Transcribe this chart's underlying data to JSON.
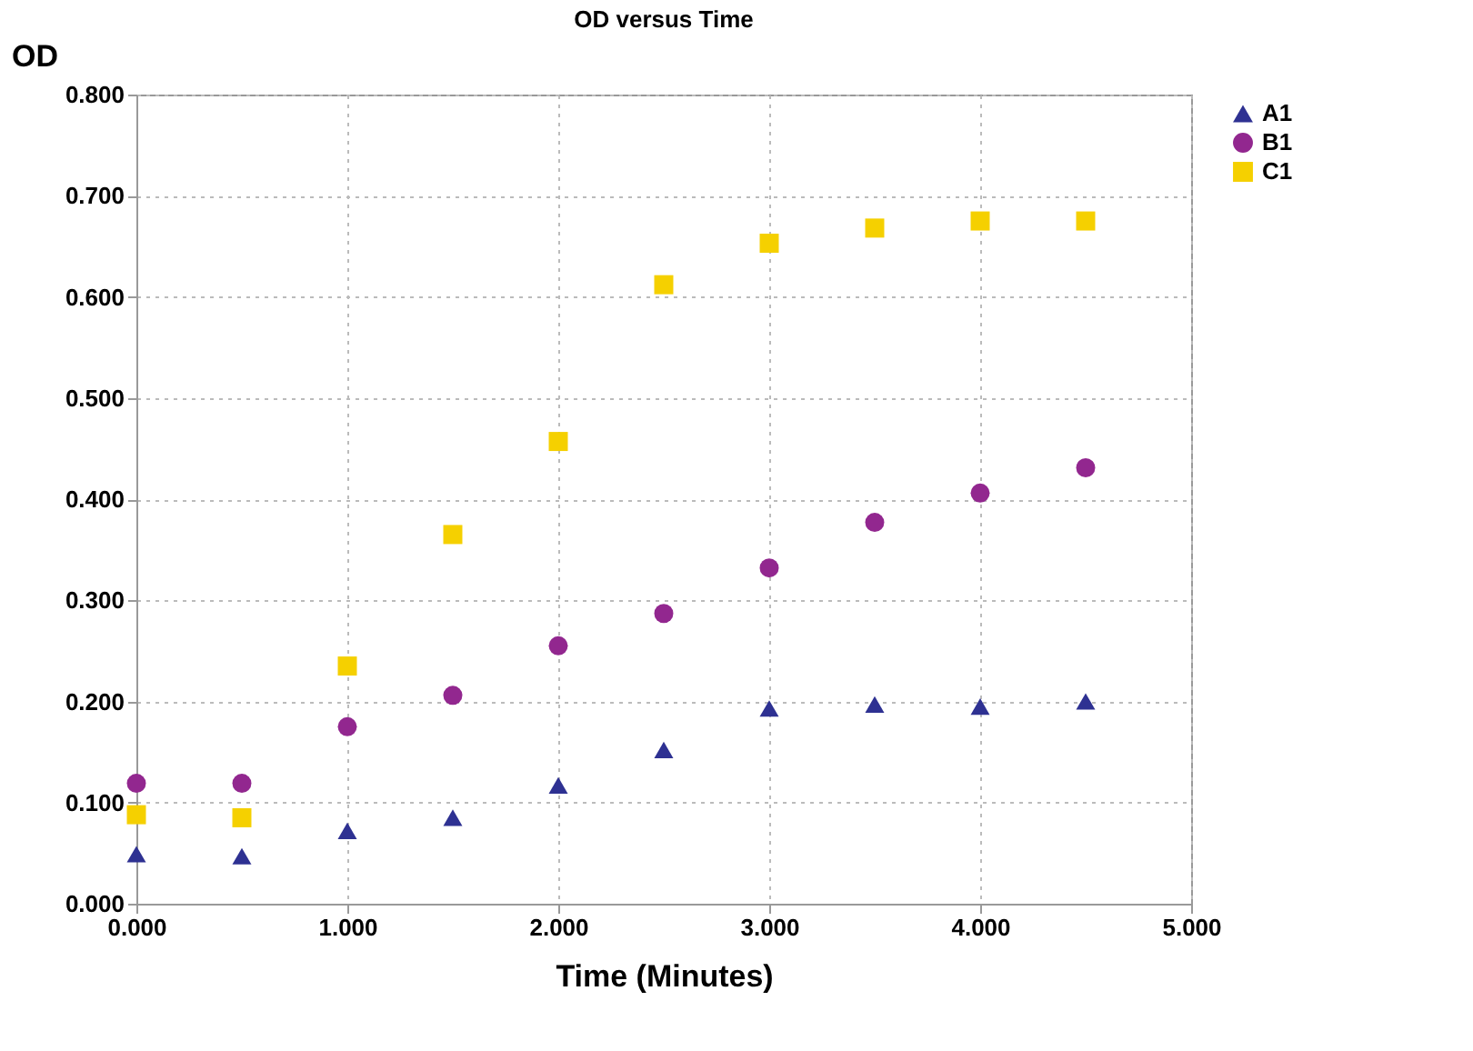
{
  "chart_data": {
    "type": "scatter",
    "title": "OD versus Time",
    "xlabel": "Time (Minutes)",
    "ylabel": "OD",
    "x": [
      0,
      0.5,
      1,
      1.5,
      2,
      2.5,
      3,
      3.5,
      4,
      4.5
    ],
    "series": [
      {
        "name": "A1",
        "color": "#2e3192",
        "marker": "triangle",
        "values": [
          0.049,
          0.047,
          0.072,
          0.085,
          0.117,
          0.152,
          0.193,
          0.197,
          0.195,
          0.2
        ]
      },
      {
        "name": "B1",
        "color": "#92278f",
        "marker": "circle",
        "values": [
          0.119,
          0.119,
          0.175,
          0.206,
          0.255,
          0.287,
          0.332,
          0.377,
          0.406,
          0.431
        ]
      },
      {
        "name": "C1",
        "color": "#f5d000",
        "marker": "square",
        "values": [
          0.088,
          0.085,
          0.235,
          0.365,
          0.457,
          0.612,
          0.653,
          0.668,
          0.675,
          0.675
        ]
      }
    ],
    "xlim": [
      0,
      5
    ],
    "xticks": [
      {
        "value": 0,
        "label": "0.000"
      },
      {
        "value": 1,
        "label": "1.000"
      },
      {
        "value": 2,
        "label": "2.000"
      },
      {
        "value": 3,
        "label": "3.000"
      },
      {
        "value": 4,
        "label": "4.000"
      },
      {
        "value": 5,
        "label": "5.000"
      }
    ],
    "ylim": [
      0,
      0.8
    ],
    "yticks": [
      {
        "value": 0,
        "label": "0.000"
      },
      {
        "value": 0.1,
        "label": "0.100"
      },
      {
        "value": 0.2,
        "label": "0.200"
      },
      {
        "value": 0.3,
        "label": "0.300"
      },
      {
        "value": 0.4,
        "label": "0.400"
      },
      {
        "value": 0.5,
        "label": "0.500"
      },
      {
        "value": 0.6,
        "label": "0.600"
      },
      {
        "value": 0.7,
        "label": "0.700"
      },
      {
        "value": 0.8,
        "label": "0.800"
      }
    ],
    "grid": true,
    "legend": "top right"
  }
}
